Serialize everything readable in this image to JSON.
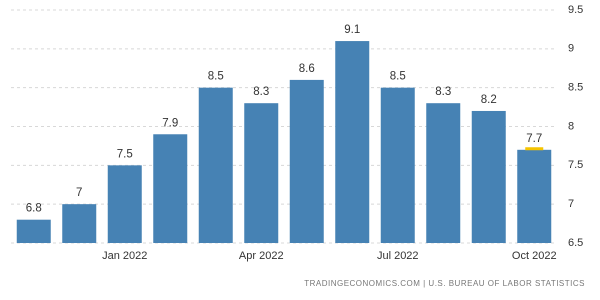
{
  "chart_data": {
    "type": "bar",
    "source": "TRADINGECONOMICS.COM | U.S. BUREAU OF LABOR STATISTICS",
    "categories": [
      null,
      null,
      "Jan 2022",
      null,
      null,
      "Apr 2022",
      null,
      null,
      "Jul 2022",
      null,
      null,
      "Oct 2022"
    ],
    "values": [
      6.8,
      7,
      7.5,
      7.9,
      8.5,
      8.3,
      8.6,
      9.1,
      8.5,
      8.3,
      8.2,
      7.7
    ],
    "color": "#4682b4",
    "highlight_color": "#f5c400",
    "ylim": [
      6.5,
      9.5
    ],
    "yticks": [
      6.5,
      7,
      7.5,
      8,
      8.5,
      9,
      9.5
    ],
    "grid": true
  }
}
